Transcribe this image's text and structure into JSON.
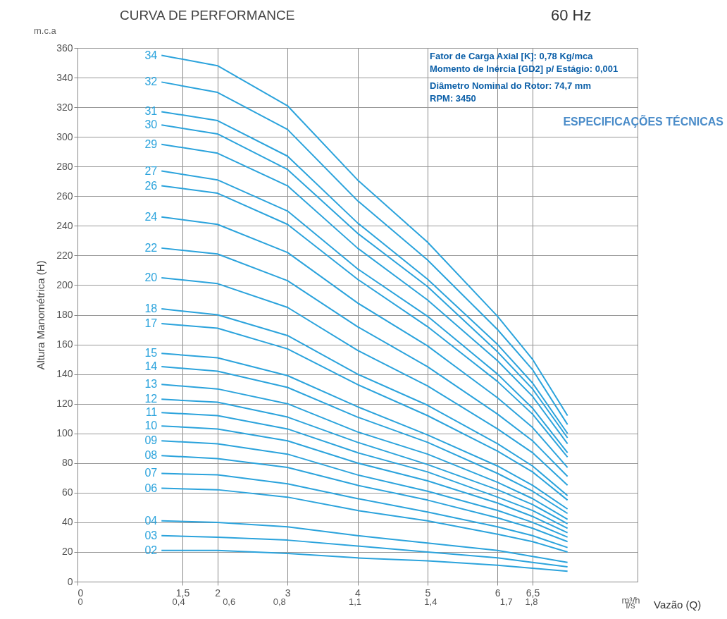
{
  "chart_data": {
    "type": "line",
    "title": "CURVA DE PERFORMANCE",
    "subtitle": "60 Hz",
    "ylabel": "Altura Manométrica (H)",
    "xlabel": "m³/h",
    "x2label": "l/s",
    "annotations": [
      "m.c.a",
      "Vazão (Q)",
      "Fator de Carga Axial [K]: 0,78 Kg/mca",
      "Momento de Inércia [GD2] p/ Estágio: 0,001",
      "Diâmetro Nominal do Rotor: 74,7 mm",
      "RPM: 3450",
      "ESPECIFICAÇÕES TÉCNICAS"
    ],
    "x": [
      1.2,
      2,
      3,
      4,
      5,
      6,
      6.5,
      7
    ],
    "xlim": [
      0,
      8
    ],
    "xticks": [
      0,
      {
        "value": 1.5,
        "label": "1,5"
      },
      2,
      3,
      4,
      5,
      6,
      {
        "value": 6.5,
        "label": "6,5"
      }
    ],
    "x2lim": [
      0,
      2.222
    ],
    "x2ticks": [
      0,
      {
        "value": 0.4,
        "label": "0,4"
      },
      {
        "value": 0.6,
        "label": "0,6"
      },
      {
        "value": 0.8,
        "label": "0,8"
      },
      {
        "value": 1.1,
        "label": "1,1"
      },
      {
        "value": 1.4,
        "label": "1,4"
      },
      {
        "value": 1.7,
        "label": "1,7"
      },
      {
        "value": 1.8,
        "label": "1,8"
      }
    ],
    "ylim": [
      0,
      360
    ],
    "yticks": [
      0,
      20,
      40,
      60,
      80,
      100,
      120,
      140,
      160,
      180,
      200,
      220,
      240,
      260,
      280,
      300,
      320,
      340,
      360
    ],
    "grid": true,
    "legend": false,
    "marker": "none",
    "line_style": "solid",
    "series": [
      {
        "name": "34",
        "color": "#2ba3dc",
        "values": [
          355,
          348,
          321,
          271,
          229,
          179,
          150,
          112
        ]
      },
      {
        "name": "32",
        "color": "#2ba3dc",
        "values": [
          337,
          330,
          305,
          257,
          217,
          170,
          143,
          106
        ]
      },
      {
        "name": "31",
        "color": "#2ba3dc",
        "values": [
          317,
          311,
          287,
          242,
          204,
          160,
          134,
          100
        ]
      },
      {
        "name": "30",
        "color": "#2ba3dc",
        "values": [
          308,
          302,
          278,
          235,
          199,
          155,
          130,
          97
        ]
      },
      {
        "name": "29",
        "color": "#2ba3dc",
        "values": [
          295,
          289,
          267,
          225,
          190,
          149,
          125,
          93
        ]
      },
      {
        "name": "27",
        "color": "#2ba3dc",
        "values": [
          277,
          271,
          250,
          211,
          179,
          140,
          117,
          87
        ]
      },
      {
        "name": "26",
        "color": "#2ba3dc",
        "values": [
          267,
          262,
          241,
          204,
          172,
          135,
          113,
          84
        ]
      },
      {
        "name": "24",
        "color": "#2ba3dc",
        "values": [
          246,
          241,
          222,
          188,
          159,
          124,
          104,
          77
        ]
      },
      {
        "name": "22",
        "color": "#2ba3dc",
        "values": [
          225,
          221,
          203,
          172,
          145,
          113,
          95,
          71
        ]
      },
      {
        "name": "20",
        "color": "#2ba3dc",
        "values": [
          205,
          201,
          185,
          156,
          132,
          103,
          87,
          65
        ]
      },
      {
        "name": "18",
        "color": "#2ba3dc",
        "values": [
          184,
          180,
          166,
          140,
          119,
          93,
          78,
          58
        ]
      },
      {
        "name": "17",
        "color": "#2ba3dc",
        "values": [
          174,
          171,
          157,
          133,
          112,
          88,
          74,
          55
        ]
      },
      {
        "name": "15",
        "color": "#2ba3dc",
        "values": [
          154,
          151,
          139,
          118,
          99,
          78,
          65,
          49
        ]
      },
      {
        "name": "14",
        "color": "#2ba3dc",
        "values": [
          145,
          142,
          131,
          111,
          94,
          73,
          61,
          46
        ]
      },
      {
        "name": "13",
        "color": "#2ba3dc",
        "values": [
          133,
          130,
          120,
          101,
          86,
          67,
          56,
          42
        ]
      },
      {
        "name": "12",
        "color": "#2ba3dc",
        "values": [
          123,
          121,
          111,
          94,
          79,
          62,
          52,
          39
        ]
      },
      {
        "name": "11",
        "color": "#2ba3dc",
        "values": [
          114,
          112,
          103,
          87,
          74,
          57,
          48,
          36
        ]
      },
      {
        "name": "10",
        "color": "#2ba3dc",
        "values": [
          105,
          103,
          95,
          80,
          68,
          53,
          44,
          33
        ]
      },
      {
        "name": "09",
        "color": "#2ba3dc",
        "values": [
          95,
          93,
          86,
          72,
          61,
          48,
          40,
          30
        ]
      },
      {
        "name": "08",
        "color": "#2ba3dc",
        "values": [
          85,
          83,
          77,
          65,
          55,
          43,
          36,
          27
        ]
      },
      {
        "name": "07",
        "color": "#2ba3dc",
        "values": [
          73,
          72,
          66,
          56,
          47,
          37,
          31,
          23
        ]
      },
      {
        "name": "06",
        "color": "#2ba3dc",
        "values": [
          63,
          62,
          57,
          48,
          41,
          32,
          27,
          20
        ]
      },
      {
        "name": "04",
        "color": "#2ba3dc",
        "values": [
          41,
          40,
          37,
          31,
          26,
          21,
          17,
          13
        ]
      },
      {
        "name": "03",
        "color": "#2ba3dc",
        "values": [
          31,
          30,
          28,
          24,
          20,
          16,
          13,
          10
        ]
      },
      {
        "name": "02",
        "color": "#2ba3dc",
        "values": [
          21,
          21,
          19,
          16,
          14,
          11,
          9,
          7
        ]
      }
    ]
  }
}
